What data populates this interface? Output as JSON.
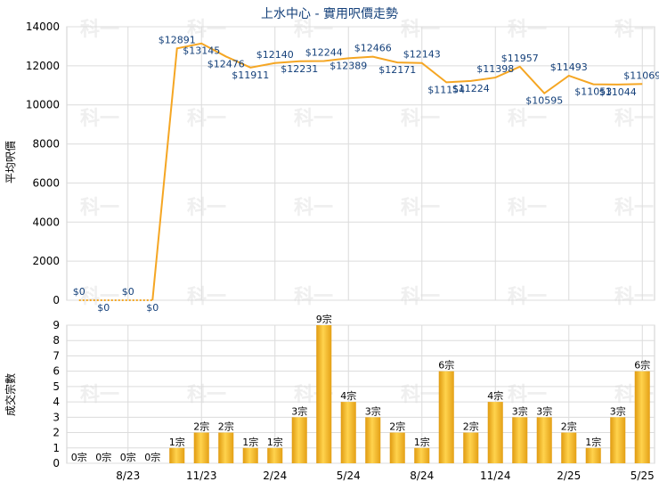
{
  "chart_data": [
    {
      "type": "line",
      "title": "上水中心 - 實用呎價走勢",
      "ylabel": "平均呎價",
      "ylim": [
        0,
        14000
      ],
      "yticks": [
        0,
        2000,
        4000,
        6000,
        8000,
        10000,
        12000,
        14000
      ],
      "x_tick_labels": [
        "8/23",
        "11/23",
        "2/24",
        "5/24",
        "8/24",
        "11/24",
        "2/25",
        "5/25"
      ],
      "point_labels": [
        "$0",
        "$0",
        "$0",
        "$0",
        "$12891",
        "$13145",
        "$12476",
        "$11911",
        "$12140",
        "$12231",
        "$12244",
        "$12389",
        "$12466",
        "$12171",
        "$12143",
        "$11154",
        "$11224",
        "$11398",
        "$11957",
        "$10595",
        "$11493",
        "$11053",
        "$11044",
        "$11069"
      ],
      "values": [
        0,
        0,
        0,
        0,
        12891,
        13145,
        12476,
        11911,
        12140,
        12231,
        12244,
        12389,
        12466,
        12171,
        12143,
        11154,
        11224,
        11398,
        11957,
        10595,
        11493,
        11053,
        11044,
        11069
      ],
      "color": "#f5a623",
      "zero_segment_dashed": true,
      "grid": true
    },
    {
      "type": "bar",
      "ylabel": "成交宗數",
      "ylim": [
        0,
        9
      ],
      "yticks": [
        0,
        1,
        2,
        3,
        4,
        5,
        6,
        7,
        8,
        9
      ],
      "x_tick_labels": [
        "8/23",
        "11/23",
        "2/24",
        "5/24",
        "8/24",
        "11/24",
        "2/25",
        "5/25"
      ],
      "values": [
        0,
        0,
        0,
        0,
        1,
        2,
        2,
        1,
        1,
        3,
        9,
        4,
        3,
        2,
        1,
        6,
        2,
        4,
        3,
        3,
        2,
        1,
        3,
        6
      ],
      "bar_labels": [
        "0宗",
        "0宗",
        "0宗",
        "0宗",
        "1宗",
        "2宗",
        "2宗",
        "1宗",
        "1宗",
        "3宗",
        "9宗",
        "4宗",
        "3宗",
        "2宗",
        "1宗",
        "6宗",
        "2宗",
        "4宗",
        "3宗",
        "3宗",
        "2宗",
        "1宗",
        "3宗",
        "6宗"
      ],
      "color": "#f0b020",
      "grid": true
    }
  ]
}
